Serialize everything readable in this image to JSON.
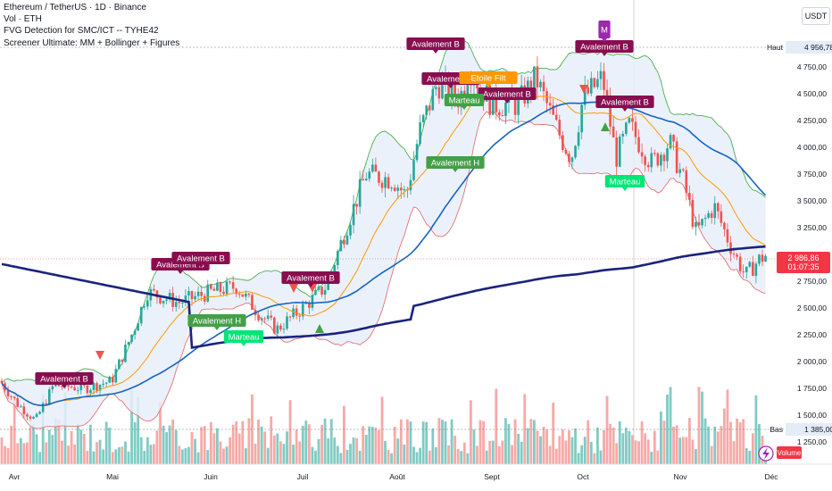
{
  "header": {
    "title_line": "Ethereum / TetherUS · 1D · Binance",
    "indicators": [
      "Vol · ETH",
      "FVG Detection for SMC/ICT -- TYHE42",
      "Screener Ultimate: MM + Bollinger + Figures"
    ],
    "currency_button": "USDT"
  },
  "price_axis": {
    "ticks": [
      "4 750,00",
      "4 500,00",
      "4 250,00",
      "4 000,00",
      "3 750,00",
      "3 500,00",
      "3 250,00",
      "2 750,00",
      "2 500,00",
      "2 250,00",
      "2 000,00",
      "1 750,00",
      "1 500,00",
      "1 250,00"
    ],
    "high_tag": {
      "label": "Haut",
      "value": "4 956,78"
    },
    "low_tag": {
      "label": "Bas",
      "value": "1 385,00"
    },
    "current_price": "2 986,86",
    "countdown": "01:07:35",
    "volume_label": "Volume"
  },
  "time_axis": {
    "months": [
      "Avr",
      "Mai",
      "Juin",
      "Juil",
      "Août",
      "Sept",
      "Oct",
      "Nov",
      "Déc"
    ]
  },
  "annotations": {
    "patterns": [
      {
        "text": "Avalement B",
        "color": "#880e4f"
      },
      {
        "text": "Avalement B",
        "color": "#880e4f"
      },
      {
        "text": "Avalement B",
        "color": "#880e4f"
      },
      {
        "text": "Avalement B",
        "color": "#880e4f"
      },
      {
        "text": "Avalement B",
        "color": "#880e4f"
      },
      {
        "text": "Avalement B",
        "color": "#880e4f"
      },
      {
        "text": "Avalement B",
        "color": "#880e4f"
      },
      {
        "text": "Avalement B",
        "color": "#880e4f"
      },
      {
        "text": "Avalement B",
        "color": "#880e4f"
      },
      {
        "text": "Avalement H",
        "color": "#43a047"
      },
      {
        "text": "Avalement H",
        "color": "#43a047"
      },
      {
        "text": "Marteau",
        "color": "#00e676"
      },
      {
        "text": "Marteau",
        "color": "#00e676"
      },
      {
        "text": "Marteau",
        "color": "#43a047"
      },
      {
        "text": "Etoile Filt",
        "color": "#ff9800"
      },
      {
        "text": "M",
        "color": "#9c27b0"
      }
    ]
  },
  "colors": {
    "bull": "#26a69a",
    "bear": "#ef5350",
    "bb_upper": "#4caf50",
    "bb_lower": "#e57373",
    "bb_fill": "#e8eefa",
    "ma_short": "#ff9800",
    "ma_mid": "#1565c0",
    "ma_long": "#1a237e",
    "price_tag": "#f23645"
  },
  "chart_data": {
    "type": "candlestick",
    "pair": "ETH/USDT",
    "interval": "1D",
    "x_range": [
      "Avr",
      "Déc"
    ],
    "ylim": [
      1200,
      5000
    ],
    "monthly_closes": [
      {
        "month": "Avr",
        "value": 1800
      },
      {
        "month": "Mai",
        "value": 2530
      },
      {
        "month": "Juin",
        "value": 2500
      },
      {
        "month": "Juil",
        "value": 3700
      },
      {
        "month": "Août",
        "value": 4400
      },
      {
        "month": "Sept",
        "value": 4150
      },
      {
        "month": "Oct",
        "value": 3850
      },
      {
        "month": "Nov",
        "value": 2990
      }
    ],
    "last_price": 2986.86,
    "period_high": 4956.78,
    "period_low": 1385.0,
    "series": [
      {
        "name": "Bollinger upper"
      },
      {
        "name": "Bollinger lower"
      },
      {
        "name": "MA short"
      },
      {
        "name": "MA mid"
      },
      {
        "name": "MA long"
      },
      {
        "name": "Volume"
      }
    ]
  }
}
